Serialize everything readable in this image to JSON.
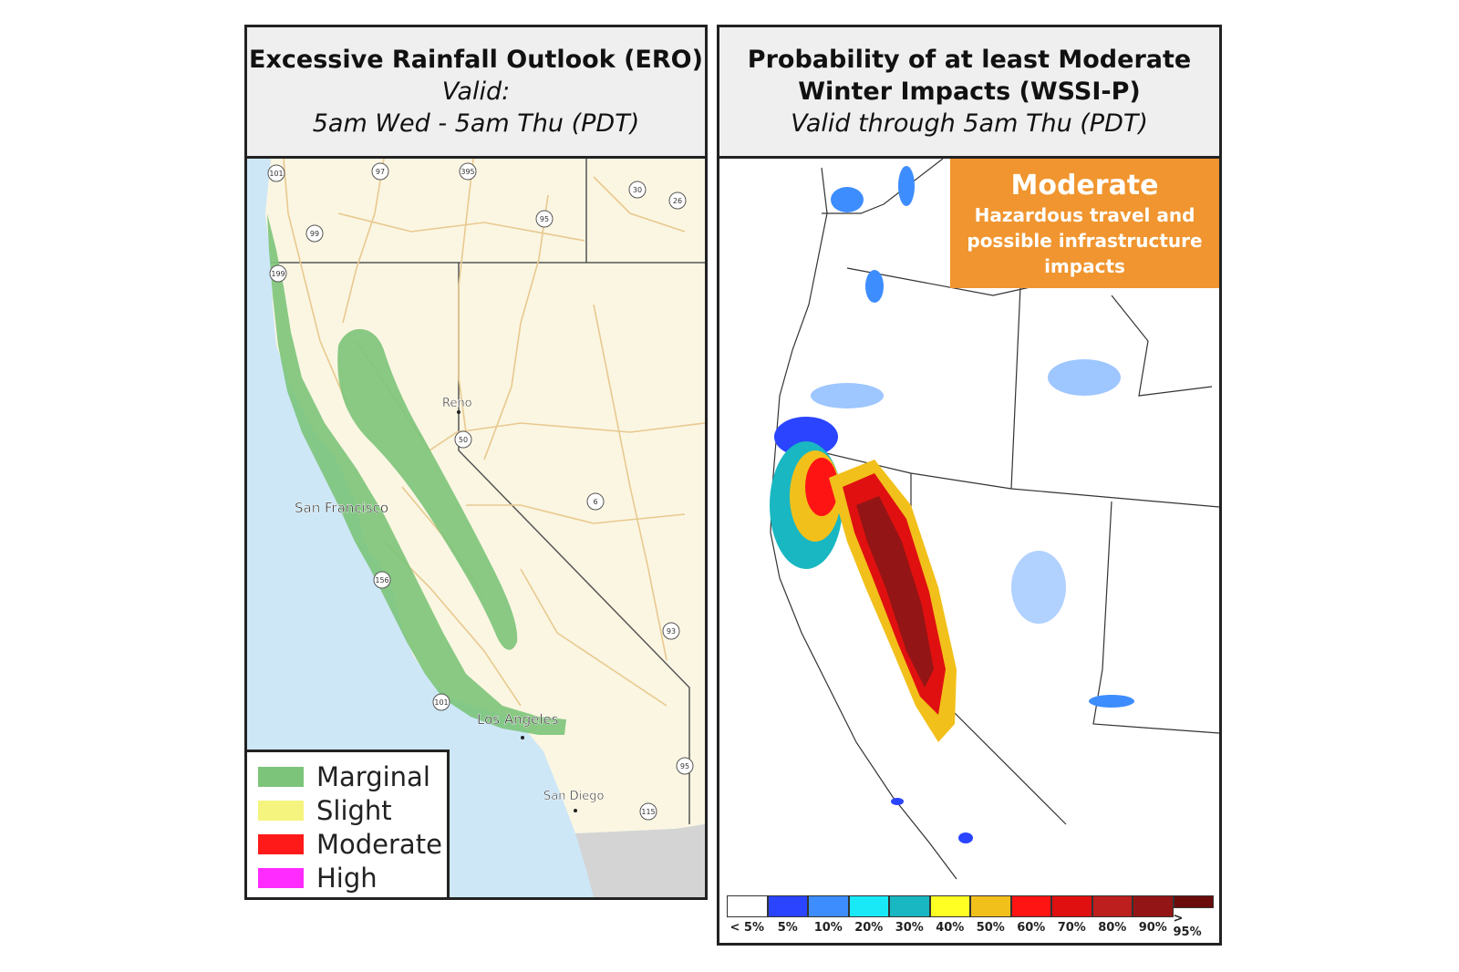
{
  "left_panel": {
    "title": "Excessive Rainfall Outlook (ERO)",
    "valid_label": "Valid:",
    "valid_range": "5am Wed - 5am Thu (PDT)",
    "cities": [
      "Reno",
      "San Francisco",
      "Los Angeles",
      "San Diego"
    ],
    "highway_shields": [
      "101",
      "97",
      "395",
      "30",
      "26",
      "95",
      "99",
      "199",
      "50",
      "6",
      "156",
      "101",
      "93",
      "95",
      "115"
    ],
    "legend": [
      {
        "label": "Marginal",
        "color": "#7cc47a"
      },
      {
        "label": "Slight",
        "color": "#f4f47e"
      },
      {
        "label": "Moderate",
        "color": "#ff1a1a"
      },
      {
        "label": "High",
        "color": "#ff2bff"
      }
    ],
    "colors": {
      "land": "#fbf6e2",
      "ocean": "#cde7f7",
      "roads": "#e8c98f",
      "mexico": "#d4d4d4"
    }
  },
  "right_panel": {
    "title_line1": "Probability of at least Moderate",
    "title_line2": "Winter Impacts (WSSI-P)",
    "valid_range": "Valid through 5am Thu (PDT)",
    "callout": {
      "title": "Moderate",
      "description": "Hazardous travel and possible infrastructure impacts",
      "color": "#f0952f"
    },
    "scale": [
      {
        "label": "< 5%",
        "color": "#ffffff"
      },
      {
        "label": "5%",
        "color": "#2a44ff"
      },
      {
        "label": "10%",
        "color": "#3d8dff"
      },
      {
        "label": "20%",
        "color": "#19e9f6"
      },
      {
        "label": "30%",
        "color": "#19b7c2"
      },
      {
        "label": "40%",
        "color": "#ffff24"
      },
      {
        "label": "50%",
        "color": "#f2c01b"
      },
      {
        "label": "60%",
        "color": "#ff1414"
      },
      {
        "label": "70%",
        "color": "#e01010"
      },
      {
        "label": "80%",
        "color": "#bd1e1e"
      },
      {
        "label": "90%",
        "color": "#941515"
      },
      {
        "label": "> 95%",
        "color": "#6b0c0c"
      }
    ]
  }
}
